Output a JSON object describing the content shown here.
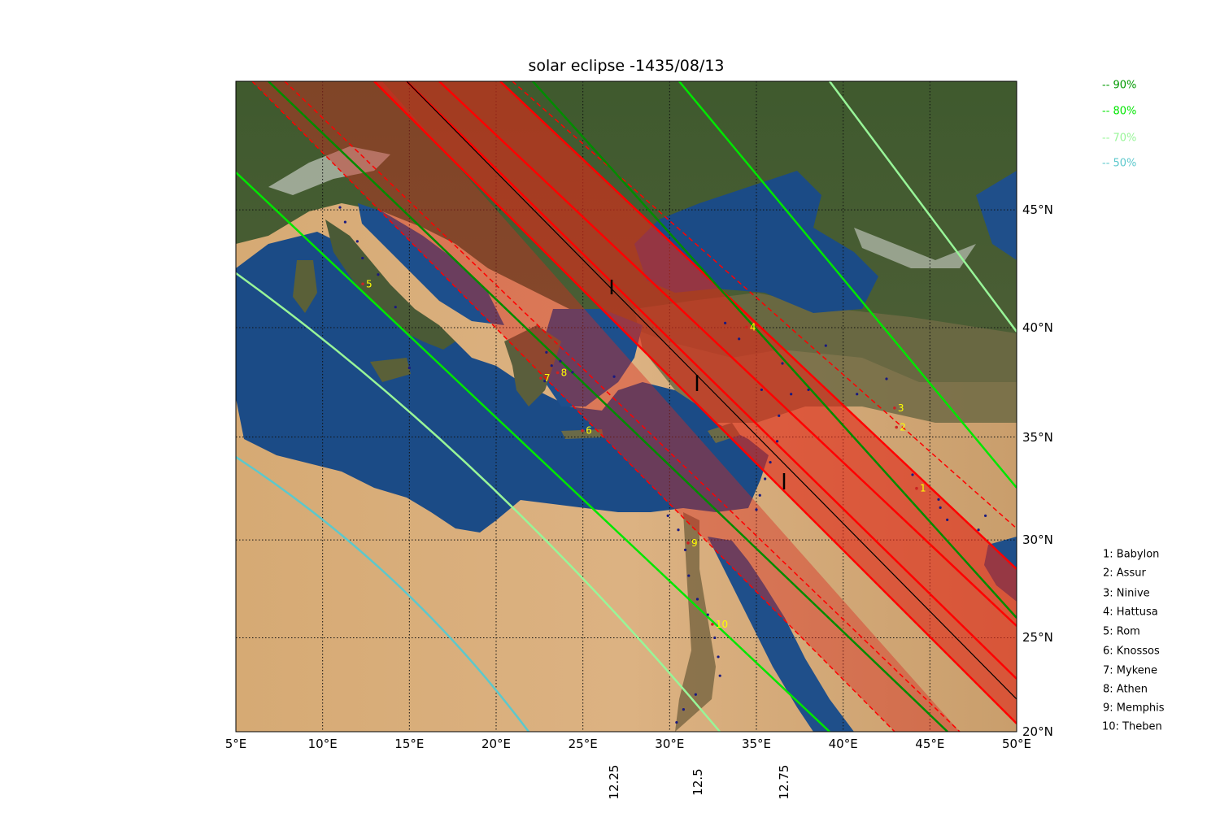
{
  "title": "solar eclipse -1435/08/13",
  "map": {
    "lon_range": [
      5,
      50
    ],
    "lat_range": [
      20,
      50
    ],
    "projection": "mercator",
    "background": "satellite imagery (blue marble)",
    "grid": "dotted",
    "lon_ticks": [
      "5°E",
      "10°E",
      "15°E",
      "20°E",
      "25°E",
      "30°E",
      "35°E",
      "40°E",
      "45°E",
      "50°E"
    ],
    "lat_ticks": [
      "20°N",
      "25°N",
      "30°N",
      "35°N",
      "40°N",
      "45°N"
    ],
    "time_ticks": [
      "12.25",
      "12.5",
      "12.75"
    ],
    "colors": {
      "totality_band": "#e02a1a",
      "band_edge": "#ff0000",
      "line_90": "#008c00",
      "line_80": "#00e600",
      "line_70": "#98f598",
      "line_50": "#5cc8cc",
      "site_label": "#ffff00",
      "town_dots": "#1a1a80"
    }
  },
  "legend": [
    {
      "label": "-- 90%",
      "color": "#009900"
    },
    {
      "label": "-- 80%",
      "color": "#00e600"
    },
    {
      "label": "-- 70%",
      "color": "#98f598"
    },
    {
      "label": "-- 50%",
      "color": "#5cc8cc"
    }
  ],
  "sites": [
    {
      "num": "1",
      "name": "Babylon",
      "lon": 44.42,
      "lat": 32.54
    },
    {
      "num": "2",
      "name": "Assur",
      "lon": 43.26,
      "lat": 35.46
    },
    {
      "num": "3",
      "name": "Ninive",
      "lon": 43.15,
      "lat": 36.36
    },
    {
      "num": "4",
      "name": "Hattusa",
      "lon": 34.62,
      "lat": 40.02
    },
    {
      "num": "5",
      "name": "Rom",
      "lon": 12.5,
      "lat": 41.9
    },
    {
      "num": "6",
      "name": "Knossos",
      "lon": 25.16,
      "lat": 35.3
    },
    {
      "num": "7",
      "name": "Mykene",
      "lon": 22.76,
      "lat": 37.73
    },
    {
      "num": "8",
      "name": "Athen",
      "lon": 23.73,
      "lat": 37.98
    },
    {
      "num": "9",
      "name": "Memphis",
      "lon": 31.25,
      "lat": 29.85
    },
    {
      "num": "10",
      "name": "Theben",
      "lon": 32.65,
      "lat": 25.7
    }
  ],
  "site_legend": [
    "1: Babylon",
    "2: Assur",
    "3: Ninive",
    "4: Hattusa",
    "5: Rom",
    "6: Knossos",
    "7: Mykene",
    "8: Athen",
    "9: Memphis",
    "10: Theben"
  ]
}
